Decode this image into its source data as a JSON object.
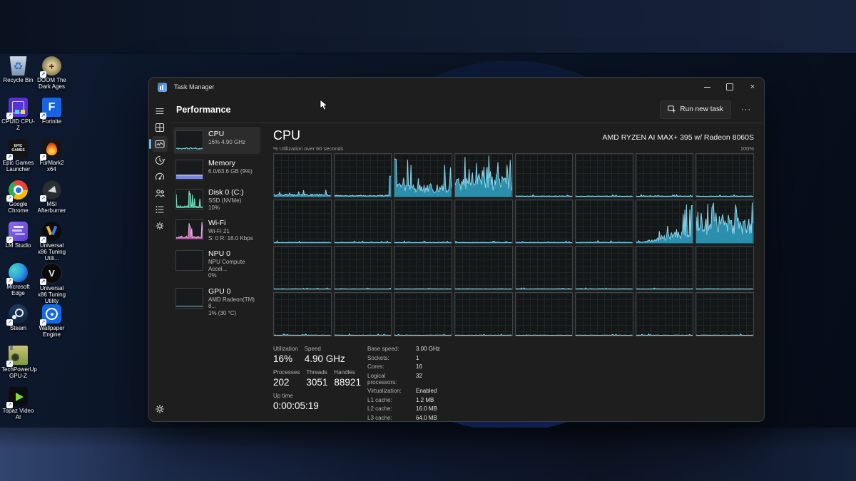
{
  "desktop": {
    "icons": [
      {
        "label": "Recycle Bin",
        "art": "art-recycle"
      },
      {
        "label": "DOOM The Dark Ages",
        "art": "art-doom"
      },
      {
        "label": "CPUID CPU-Z",
        "art": "art-cpuz"
      },
      {
        "label": "Fortnite",
        "art": "art-fortnite"
      },
      {
        "label": "Epic Games Launcher",
        "art": "art-epic"
      },
      {
        "label": "FurMark2 x64",
        "art": "art-furmark"
      },
      {
        "label": "Google Chrome",
        "art": "art-chrome"
      },
      {
        "label": "MSI Afterburner",
        "art": "art-msi"
      },
      {
        "label": "LM Studio",
        "art": "art-lm"
      },
      {
        "label": "Universal x86 Tuning Utili...",
        "art": "art-uxtu1"
      },
      {
        "label": "Microsoft Edge",
        "art": "art-edge"
      },
      {
        "label": "Universal x86 Tuning Utility",
        "art": "art-uxtu2"
      },
      {
        "label": "Steam",
        "art": "art-steam"
      },
      {
        "label": "Wallpaper Engine",
        "art": "art-we"
      },
      {
        "label": "TechPowerUp GPU-Z",
        "art": "art-gpuz"
      },
      {
        "label": "Topaz Video AI",
        "art": "art-topaz"
      }
    ]
  },
  "taskman": {
    "title": "Task Manager",
    "page_title": "Performance",
    "toolbar": {
      "run_new_task": "Run new task",
      "more": "···"
    },
    "nav": [
      {
        "name": "menu",
        "selected": false
      },
      {
        "name": "processes",
        "selected": false
      },
      {
        "name": "performance",
        "selected": true
      },
      {
        "name": "app-history",
        "selected": false
      },
      {
        "name": "startup-apps",
        "selected": false
      },
      {
        "name": "users",
        "selected": false
      },
      {
        "name": "details",
        "selected": false
      },
      {
        "name": "services",
        "selected": false
      }
    ],
    "nav_bottom": [
      {
        "name": "settings",
        "selected": false
      }
    ],
    "sidebar": [
      {
        "id": "cpu",
        "title": "CPU",
        "lines": [
          "16% 4.90 GHz"
        ],
        "selected": true,
        "thumb": {
          "type": "line",
          "color": "#8fd6ea",
          "avg": 7,
          "peak": 14,
          "spike": 0.08,
          "seed": 11
        }
      },
      {
        "id": "memory",
        "title": "Memory",
        "lines": [
          "6.0/63.6 GB (9%)"
        ],
        "selected": false,
        "thumb": {
          "type": "band",
          "color": "#7d86dd",
          "line": "#b9c0f2",
          "level": 24
        }
      },
      {
        "id": "disk0",
        "title": "Disk 0 (C:)",
        "lines": [
          "SSD (NVMe)",
          "10%"
        ],
        "selected": false,
        "thumb": {
          "type": "area",
          "color": "#2fae86",
          "line": "#7fe3c0",
          "avg": 9,
          "peak": 95,
          "spike": 0.07,
          "shape": "midspike",
          "seed": 23
        }
      },
      {
        "id": "wifi",
        "title": "Wi-Fi",
        "lines": [
          "Wi-Fi 21",
          "S: 0 R: 16.0 Kbps"
        ],
        "selected": false,
        "thumb": {
          "type": "area",
          "color": "#d36ec4",
          "line": "#f0a5e3",
          "avg": 10,
          "peak": 92,
          "spike": 0.07,
          "shape": "midspike",
          "seed": 37
        }
      },
      {
        "id": "npu0",
        "title": "NPU 0",
        "lines": [
          "NPU Compute Accel...",
          "0%"
        ],
        "selected": false,
        "thumb": {
          "type": "empty"
        }
      },
      {
        "id": "gpu0",
        "title": "GPU 0",
        "lines": [
          "AMD Radeon(TM) 8...",
          "1% (30 °C)"
        ],
        "selected": false,
        "thumb": {
          "type": "flat",
          "color": "#8fd6ea"
        }
      }
    ],
    "main": {
      "title": "CPU",
      "subtitle": "AMD RYZEN AI MAX+ 395 w/ Radeon 8060S",
      "graph_caption": "% Utilization over 60 seconds",
      "graph_top": "100%",
      "stats_left": [
        [
          {
            "label": "Utilization",
            "value": "16%"
          },
          {
            "label": "Speed",
            "value": "4.90 GHz"
          }
        ],
        [
          {
            "label": "Processes",
            "value": "202"
          },
          {
            "label": "Threads",
            "value": "3051"
          },
          {
            "label": "Handles",
            "value": "88921"
          }
        ],
        [
          {
            "label": "Up time",
            "value": "0:00:05:19"
          }
        ]
      ],
      "stats_right": [
        {
          "label": "Base speed:",
          "value": "3.00 GHz"
        },
        {
          "label": "Sockets:",
          "value": "1"
        },
        {
          "label": "Cores:",
          "value": "16"
        },
        {
          "label": "Logical processors:",
          "value": "32"
        },
        {
          "label": "Virtualization:",
          "value": "Enabled"
        },
        {
          "label": "L1 cache:",
          "value": "1.2 MB"
        },
        {
          "label": "L2 cache:",
          "value": "16.0 MB"
        },
        {
          "label": "L3 cache:",
          "value": "64.0 MB"
        }
      ]
    }
  },
  "chart_data": {
    "type": "area",
    "title": "CPU % Utilization over 60 seconds, per logical processor",
    "ylim": [
      0,
      100
    ],
    "x_window_seconds": 60,
    "grid": true,
    "layout": {
      "rows": 4,
      "cols": 8
    },
    "fill_color": "#2f9cbd",
    "line_color": "#8fd6ea",
    "cores": [
      {
        "avg": 4,
        "peak": 18,
        "spike": 0.06
      },
      {
        "avg": 2.5,
        "peak": 48,
        "spike": 0.02,
        "shape": "endspike"
      },
      {
        "avg": 20,
        "peak": 88,
        "spike": 0.1,
        "shape": "startspike"
      },
      {
        "avg": 30,
        "peak": 97,
        "spike": 0.3
      },
      {
        "avg": 1.2,
        "peak": 5,
        "spike": 0.05
      },
      {
        "avg": 1.2,
        "peak": 5,
        "spike": 0.05
      },
      {
        "avg": 1.2,
        "peak": 5,
        "spike": 0.05
      },
      {
        "avg": 1.2,
        "peak": 5,
        "spike": 0.05
      },
      {
        "avg": 1.2,
        "peak": 5,
        "spike": 0.05
      },
      {
        "avg": 1.2,
        "peak": 5,
        "spike": 0.05
      },
      {
        "avg": 1.2,
        "peak": 5,
        "spike": 0.05
      },
      {
        "avg": 1.2,
        "peak": 5,
        "spike": 0.05
      },
      {
        "avg": 1.2,
        "peak": 5,
        "spike": 0.05
      },
      {
        "avg": 1.5,
        "peak": 8,
        "spike": 0.05
      },
      {
        "avg": 22,
        "peak": 92,
        "spike": 0.12,
        "shape": "rise"
      },
      {
        "avg": 40,
        "peak": 95,
        "spike": 0.32
      },
      {
        "avg": 1,
        "peak": 4,
        "spike": 0.04
      },
      {
        "avg": 1,
        "peak": 4,
        "spike": 0.04
      },
      {
        "avg": 1,
        "peak": 4,
        "spike": 0.04
      },
      {
        "avg": 1,
        "peak": 4,
        "spike": 0.04
      },
      {
        "avg": 1,
        "peak": 4,
        "spike": 0.04
      },
      {
        "avg": 1,
        "peak": 4,
        "spike": 0.04
      },
      {
        "avg": 1,
        "peak": 4,
        "spike": 0.04
      },
      {
        "avg": 1,
        "peak": 4,
        "spike": 0.04
      },
      {
        "avg": 1,
        "peak": 4,
        "spike": 0.04
      },
      {
        "avg": 1,
        "peak": 4,
        "spike": 0.04
      },
      {
        "avg": 1,
        "peak": 4,
        "spike": 0.04
      },
      {
        "avg": 1,
        "peak": 4,
        "spike": 0.04
      },
      {
        "avg": 1,
        "peak": 4,
        "spike": 0.04
      },
      {
        "avg": 1,
        "peak": 4,
        "spike": 0.04
      },
      {
        "avg": 1,
        "peak": 4,
        "spike": 0.04
      },
      {
        "avg": 1,
        "peak": 4,
        "spike": 0.04
      }
    ]
  }
}
